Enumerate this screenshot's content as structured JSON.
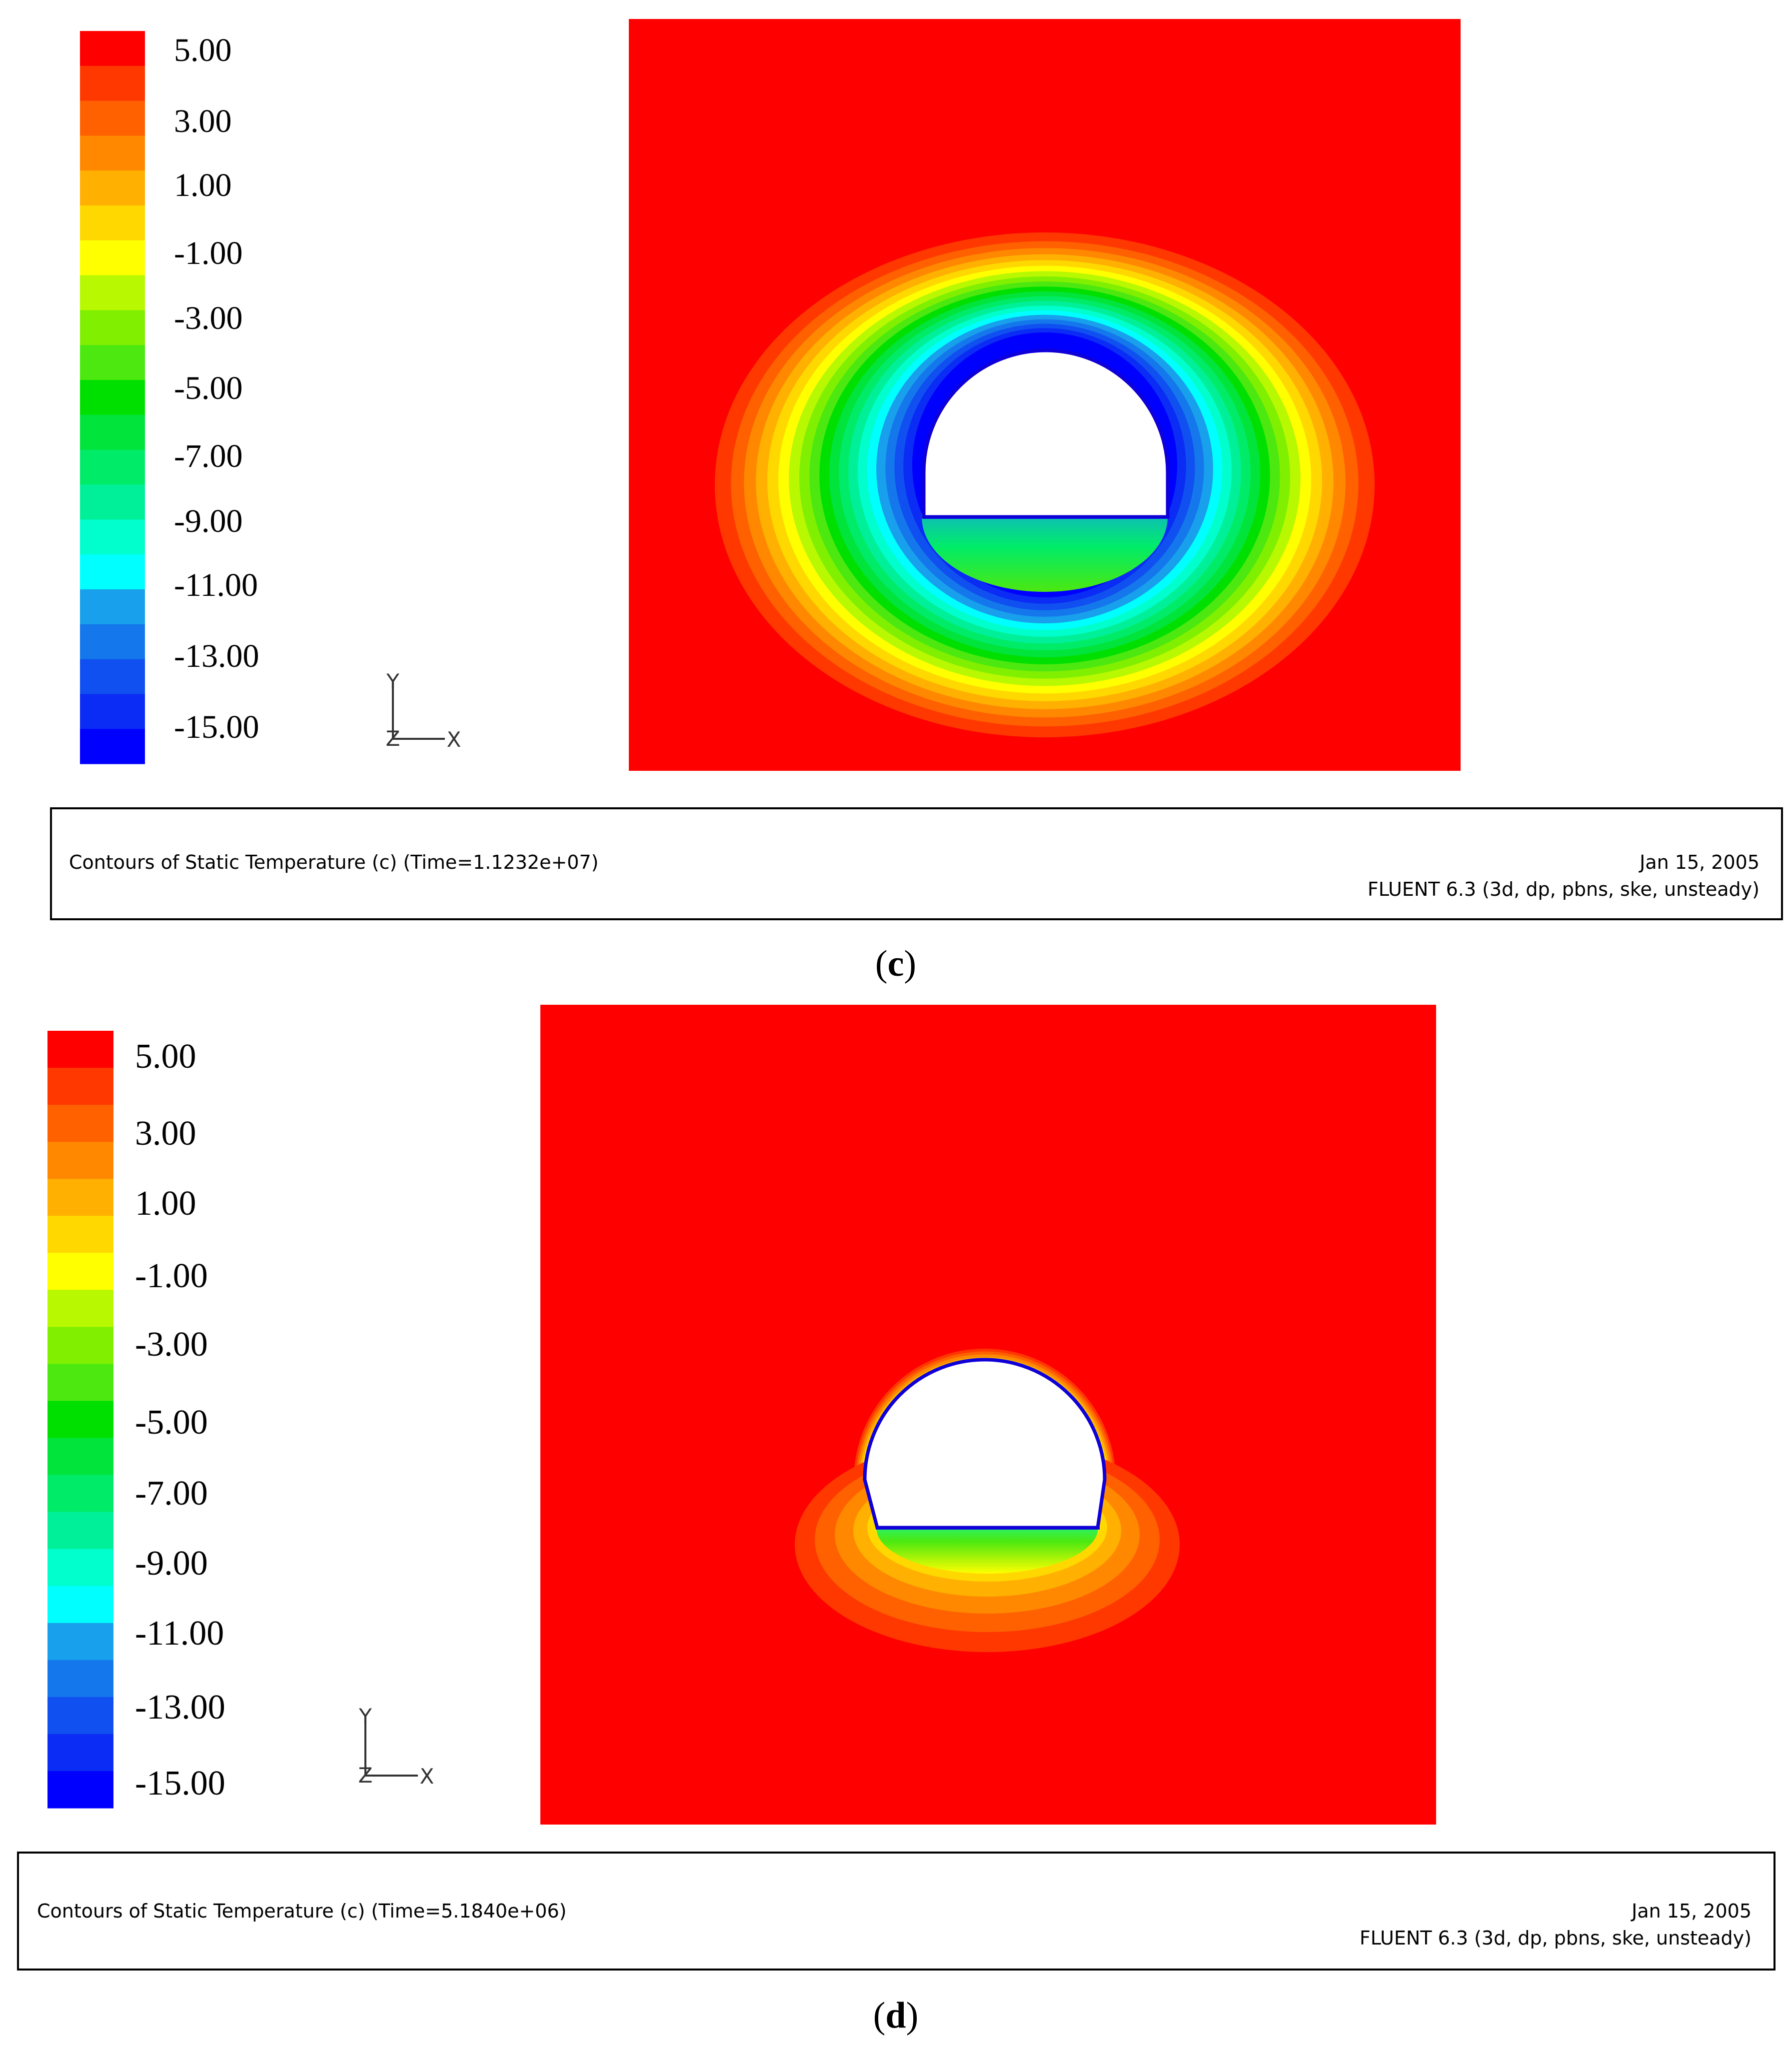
{
  "colormap": {
    "colors": [
      "#0000ff",
      "#0a2cf4",
      "#1050f0",
      "#1478ec",
      "#18a0ec",
      "#00ffff",
      "#00ffcc",
      "#00f09a",
      "#00ec68",
      "#00e43c",
      "#00e000",
      "#4ce810",
      "#80f000",
      "#b8f800",
      "#ffff00",
      "#ffd800",
      "#ffb000",
      "#ff8800",
      "#ff6000",
      "#ff3800",
      "#ff0000"
    ],
    "labels": [
      "5.00",
      "3.00",
      "1.00",
      "-1.00",
      "-3.00",
      "-5.00",
      "-7.00",
      "-9.00",
      "-11.00",
      "-13.00",
      "-15.00"
    ],
    "domain_color": "#ff0000",
    "opening_color": "#ffffff",
    "boundary_color": "#1000d8"
  },
  "axes": {
    "y": "Y",
    "z": "Z",
    "x": "X"
  },
  "panels": [
    {
      "info_left": "Contours of Static Temperature (c)  (Time=1.1232e+07)",
      "date": "Jan 15, 2005",
      "solver": "FLUENT 6.3 (3d, dp, pbns, ske, unsteady)",
      "caption": {
        "open": "(",
        "letter": "c",
        "close": ")"
      }
    },
    {
      "info_left": "Contours of Static Temperature (c)  (Time=5.1840e+06)",
      "date": "Jan 15, 2005",
      "solver": "FLUENT 6.3 (3d, dp, pbns, ske, unsteady)",
      "caption": {
        "open": "(",
        "letter": "d",
        "close": ")"
      }
    }
  ]
}
